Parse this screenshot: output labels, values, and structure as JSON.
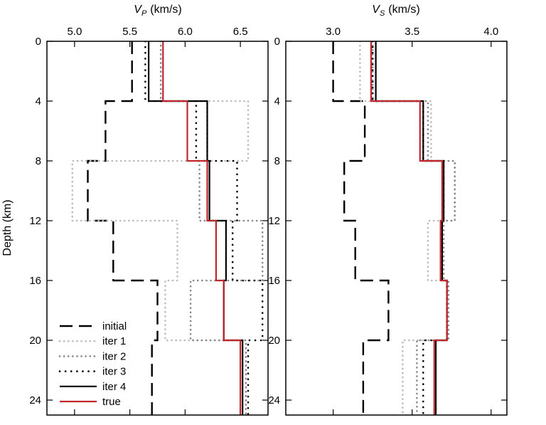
{
  "chart_data": [
    {
      "type": "line",
      "title": "",
      "xlabel": "V_P (km/s)",
      "xlabel_main": "V",
      "xlabel_sub": "P",
      "xlabel_unit": "(km/s)",
      "ylabel": "Depth (km)",
      "xlim": [
        4.75,
        6.75
      ],
      "ylim": [
        25,
        0
      ],
      "xticks": [
        5.0,
        5.5,
        6.0,
        6.5
      ],
      "xtick_labels": [
        "5.0",
        "5.5",
        "6.0",
        "6.5"
      ],
      "yticks": [
        0,
        4,
        8,
        12,
        16,
        20,
        24
      ],
      "ytick_labels": [
        "0",
        "4",
        "8",
        "12",
        "16",
        "20",
        "24"
      ],
      "layer_boundaries": [
        0,
        4,
        8,
        12,
        16,
        20,
        25
      ],
      "legend_position": "bottom-left",
      "series": [
        {
          "name": "initial",
          "style": "dashed",
          "color": "#000000",
          "values": [
            5.52,
            5.28,
            5.12,
            5.35,
            5.75,
            5.7
          ]
        },
        {
          "name": "iter 1",
          "style": "dotted-light",
          "color": "#bbbbbb",
          "values": [
            5.78,
            6.57,
            4.98,
            5.93,
            5.82,
            6.55
          ]
        },
        {
          "name": "iter 2",
          "style": "dotted-medium",
          "color": "#888888",
          "values": [
            5.78,
            6.2,
            6.13,
            6.7,
            6.05,
            6.55
          ]
        },
        {
          "name": "iter 3",
          "style": "dotted-dark",
          "color": "#000000",
          "values": [
            5.64,
            6.1,
            6.47,
            6.43,
            6.7,
            6.57
          ]
        },
        {
          "name": "iter 4",
          "style": "solid",
          "color": "#000000",
          "values": [
            5.67,
            6.2,
            6.22,
            6.37,
            6.35,
            6.52
          ]
        },
        {
          "name": "true",
          "style": "solid",
          "color": "#c0262b",
          "values": [
            5.8,
            6.02,
            6.2,
            6.28,
            6.35,
            6.5
          ]
        }
      ]
    },
    {
      "type": "line",
      "title": "",
      "xlabel": "V_S (km/s)",
      "xlabel_main": "V",
      "xlabel_sub": "S",
      "xlabel_unit": "(km/s)",
      "ylabel": "",
      "xlim": [
        2.7,
        4.1
      ],
      "ylim": [
        25,
        0
      ],
      "xticks": [
        3.0,
        3.5,
        4.0
      ],
      "xtick_labels": [
        "3.0",
        "3.5",
        "4.0"
      ],
      "yticks": [
        0,
        4,
        8,
        12,
        16,
        20,
        24
      ],
      "ytick_labels": [
        "0",
        "4",
        "8",
        "12",
        "16",
        "20",
        "24"
      ],
      "layer_boundaries": [
        0,
        4,
        8,
        12,
        16,
        20,
        25
      ],
      "series": [
        {
          "name": "initial",
          "style": "dashed",
          "color": "#000000",
          "values": [
            3.0,
            3.2,
            3.07,
            3.14,
            3.35,
            3.19
          ]
        },
        {
          "name": "iter 1",
          "style": "dotted-light",
          "color": "#bbbbbb",
          "values": [
            3.17,
            3.62,
            3.77,
            3.6,
            3.72,
            3.44
          ]
        },
        {
          "name": "iter 2",
          "style": "dotted-medium",
          "color": "#888888",
          "values": [
            3.25,
            3.6,
            3.77,
            3.7,
            3.73,
            3.53
          ]
        },
        {
          "name": "iter 3",
          "style": "dotted-dark",
          "color": "#000000",
          "values": [
            3.25,
            3.57,
            3.7,
            3.69,
            3.72,
            3.57
          ]
        },
        {
          "name": "iter 4",
          "style": "solid",
          "color": "#000000",
          "values": [
            3.27,
            3.57,
            3.7,
            3.69,
            3.72,
            3.65
          ]
        },
        {
          "name": "true",
          "style": "solid",
          "color": "#c0262b",
          "values": [
            3.24,
            3.55,
            3.69,
            3.68,
            3.72,
            3.64
          ]
        }
      ]
    }
  ]
}
